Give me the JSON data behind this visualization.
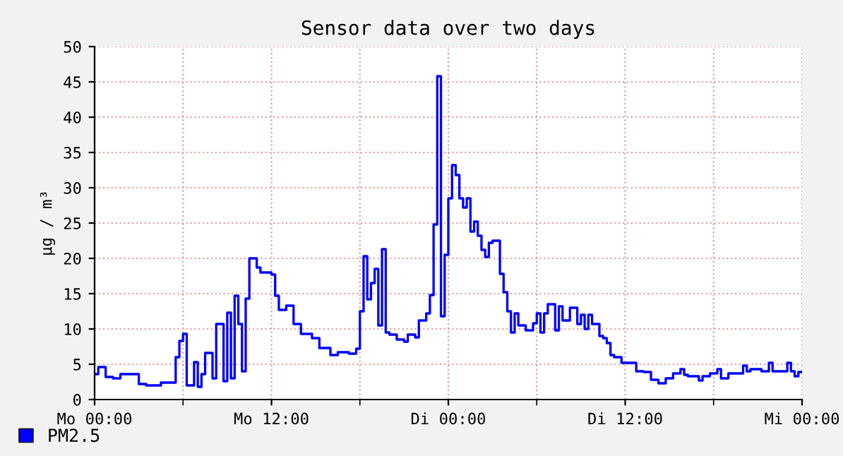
{
  "chart_data": {
    "type": "step",
    "title": "Sensor data over two days",
    "ylabel": "µg / m³",
    "ylim": [
      0,
      50
    ],
    "categories": [
      "Mo 00:00",
      null,
      null,
      null,
      null,
      null,
      null,
      null,
      null,
      null,
      null,
      null,
      null,
      null,
      null,
      null,
      null,
      null,
      null,
      null,
      null,
      null,
      null,
      null,
      null,
      null,
      null,
      null,
      null,
      null,
      null,
      null,
      null,
      null,
      null,
      null,
      null,
      null,
      null,
      null,
      null,
      null,
      null,
      null,
      null,
      null,
      null,
      null,
      "Mo 12:00",
      null,
      null,
      null,
      null,
      null,
      null,
      null,
      null,
      null,
      null,
      null,
      null,
      null,
      null,
      null,
      null,
      null,
      null,
      null,
      null,
      null,
      null,
      null,
      null,
      null,
      null,
      null,
      null,
      null,
      null,
      null,
      null,
      null,
      null,
      null,
      null,
      null,
      null,
      null,
      null,
      null,
      null,
      null,
      null,
      null,
      null,
      null,
      "Di 00:00",
      null,
      null,
      null,
      null,
      null,
      null,
      null,
      null,
      null,
      null,
      null,
      null,
      null,
      null,
      null,
      null,
      null,
      null,
      null,
      null,
      null,
      null,
      null,
      null,
      null,
      null,
      null,
      null,
      null,
      null,
      null,
      null,
      null,
      null,
      null,
      null,
      null,
      null,
      null,
      null,
      null,
      null,
      null,
      null,
      null,
      null,
      null,
      "Di 12:00",
      null,
      null,
      null,
      null,
      null,
      null,
      null,
      null,
      null,
      null,
      null,
      null,
      null,
      null,
      null,
      null,
      null,
      null,
      null,
      null,
      null,
      null,
      null,
      null,
      null,
      null,
      null,
      null,
      null,
      null,
      null,
      null,
      null,
      null,
      null,
      null,
      null,
      null,
      null,
      null,
      null,
      null,
      null,
      null,
      null,
      null,
      null,
      "Mi 00:00"
    ],
    "yticks": [
      0,
      5,
      10,
      15,
      20,
      25,
      30,
      35,
      40,
      45,
      50
    ],
    "grid": true,
    "legend": "bottom left",
    "series": [
      {
        "name": "PM2.5",
        "color": "#0000ff",
        "values": [
          3.6,
          4.6,
          4.6,
          3.2,
          3.2,
          3.0,
          3.0,
          3.6,
          3.6,
          3.6,
          3.6,
          3.6,
          2.2,
          2.2,
          2.0,
          2.0,
          2.0,
          2.0,
          2.4,
          2.4,
          2.4,
          2.4,
          6.0,
          8.3,
          9.3,
          2.0,
          2.0,
          5.3,
          1.8,
          3.6,
          6.6,
          6.6,
          3.0,
          10.7,
          10.7,
          2.6,
          12.3,
          3.0,
          14.7,
          10.7,
          4.0,
          14.3,
          20.0,
          20.0,
          18.7,
          18.0,
          18.0,
          18.0,
          17.7,
          14.7,
          12.7,
          12.7,
          13.3,
          13.3,
          10.7,
          10.7,
          9.3,
          9.3,
          9.3,
          8.7,
          8.7,
          7.3,
          7.3,
          7.3,
          6.3,
          6.3,
          6.7,
          6.7,
          6.7,
          6.5,
          6.5,
          7.2,
          12.5,
          20.3,
          14.2,
          16.5,
          18.5,
          10.5,
          21.3,
          9.5,
          9.2,
          9.2,
          8.5,
          8.5,
          8.2,
          9.2,
          9.2,
          8.8,
          11.2,
          11.2,
          12.2,
          14.8,
          24.8,
          45.8,
          11.8,
          20.5,
          28.5,
          33.2,
          31.8,
          28.5,
          27.2,
          28.5,
          23.8,
          25.2,
          23.2,
          21.2,
          20.2,
          22.2,
          22.5,
          22.5,
          17.8,
          15.2,
          12.5,
          9.5,
          12.2,
          10.5,
          10.5,
          9.8,
          9.8,
          10.8,
          12.2,
          9.5,
          12.2,
          13.5,
          13.5,
          9.8,
          13.2,
          11.2,
          11.2,
          13.0,
          13.0,
          10.7,
          12.0,
          10.0,
          12.0,
          10.7,
          10.7,
          9.0,
          8.7,
          8.0,
          6.3,
          6.0,
          6.0,
          5.2,
          5.2,
          5.2,
          5.2,
          4.0,
          4.0,
          3.9,
          3.9,
          2.8,
          2.8,
          2.3,
          2.3,
          3.0,
          3.0,
          3.7,
          3.7,
          4.3,
          3.5,
          3.3,
          3.3,
          3.3,
          2.7,
          3.3,
          3.3,
          3.7,
          3.7,
          4.3,
          3.0,
          3.0,
          3.7,
          3.7,
          3.7,
          3.7,
          4.8,
          4.0,
          4.3,
          4.3,
          4.3,
          4.0,
          4.0,
          5.2,
          4.0,
          4.0,
          4.0,
          4.0,
          5.2,
          4.0,
          3.3,
          3.9,
          3.9
        ]
      }
    ]
  }
}
